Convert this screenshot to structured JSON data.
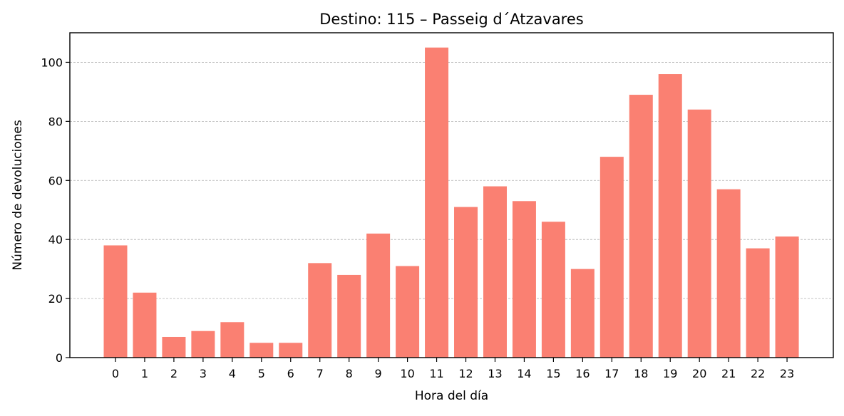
{
  "chart_data": {
    "type": "bar",
    "title": "Destino: 115 – Passeig d´Atzavares",
    "xlabel": "Hora del día",
    "ylabel": "Número de devoluciones",
    "categories": [
      "0",
      "1",
      "2",
      "3",
      "4",
      "5",
      "6",
      "7",
      "8",
      "9",
      "10",
      "11",
      "12",
      "13",
      "14",
      "15",
      "16",
      "17",
      "18",
      "19",
      "20",
      "21",
      "22",
      "23"
    ],
    "values": [
      38,
      22,
      7,
      9,
      12,
      5,
      5,
      32,
      28,
      42,
      31,
      105,
      51,
      58,
      53,
      46,
      30,
      68,
      89,
      96,
      84,
      57,
      37,
      41
    ],
    "ylim": [
      0,
      110
    ],
    "yticks": [
      0,
      20,
      40,
      60,
      80,
      100
    ],
    "ytick_labels": [
      "0",
      "20",
      "40",
      "60",
      "80",
      "100"
    ],
    "grid": "y-dashed",
    "bar_color": "#fa8072"
  }
}
